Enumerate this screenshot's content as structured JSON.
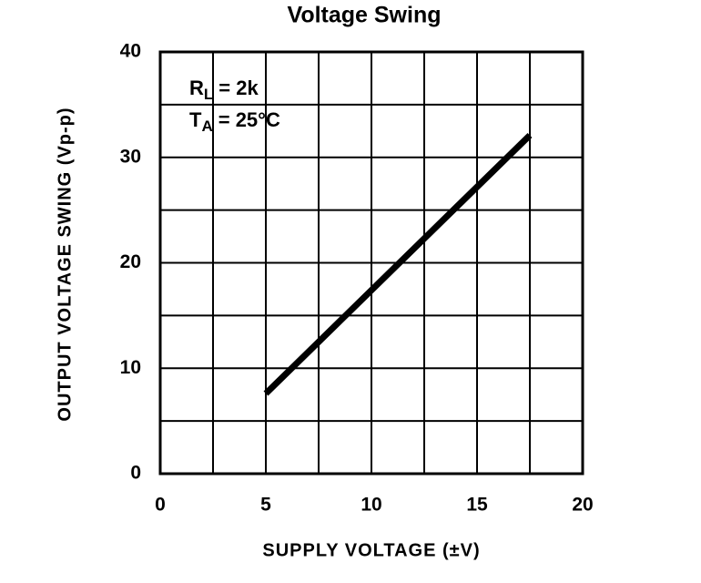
{
  "chart_data": {
    "type": "line",
    "title": "Voltage Swing",
    "x_label": "SUPPLY VOLTAGE (±V)",
    "y_label": "OUTPUT VOLTAGE SWING (Vp-p)",
    "annotations": [
      {
        "symbol": "R",
        "subscript": "L",
        "text": "= 2k"
      },
      {
        "symbol": "T",
        "subscript": "A",
        "text": "= 25°C"
      }
    ],
    "x": [
      5,
      17.5
    ],
    "series": [
      {
        "color": "#000000",
        "values": [
          7.6,
          32.1
        ]
      }
    ],
    "xlim": [
      0,
      20
    ],
    "ylim": [
      0,
      40
    ],
    "xticks": [
      0,
      5,
      10,
      15,
      20
    ],
    "yticks": [
      0,
      10,
      20,
      30,
      40
    ],
    "xgrid": [
      0,
      2.5,
      5,
      7.5,
      10,
      12.5,
      15,
      17.5,
      20
    ],
    "ygrid": [
      0,
      5,
      10,
      15,
      20,
      25,
      30,
      35,
      40
    ],
    "grid": true
  }
}
